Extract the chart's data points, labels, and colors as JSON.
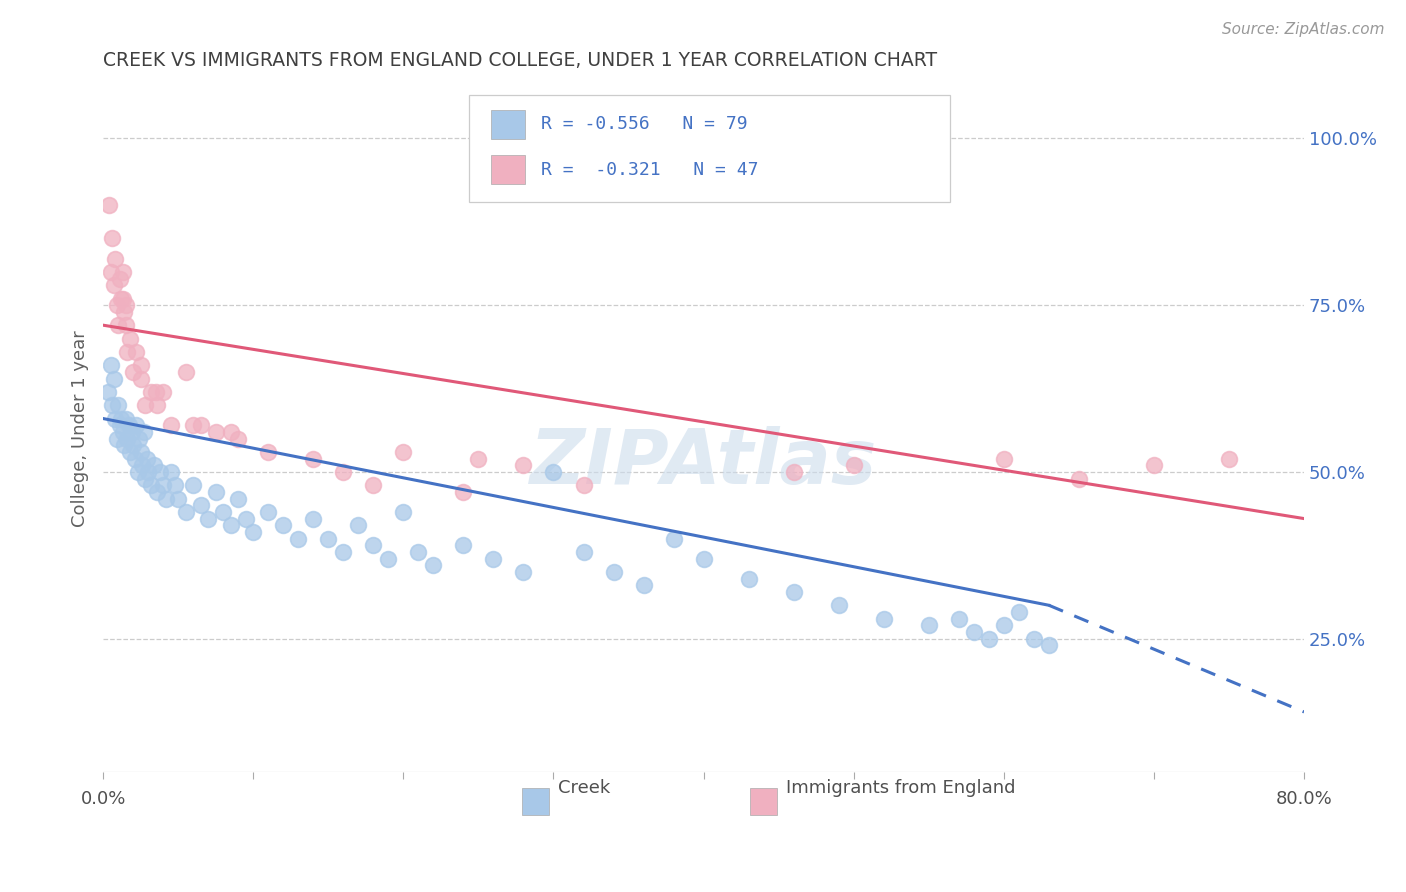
{
  "title": "CREEK VS IMMIGRANTS FROM ENGLAND COLLEGE, UNDER 1 YEAR CORRELATION CHART",
  "source": "Source: ZipAtlas.com",
  "ylabel": "College, Under 1 year",
  "ylabel_ticks_right": [
    "25.0%",
    "50.0%",
    "75.0%",
    "100.0%"
  ],
  "ylabel_ticks_right_vals": [
    0.25,
    0.5,
    0.75,
    1.0
  ],
  "xmin": 0.0,
  "xmax": 0.8,
  "ymin": 0.05,
  "ymax": 1.08,
  "legend_label1": "Creek",
  "legend_label2": "Immigrants from England",
  "R1": -0.556,
  "N1": 79,
  "R2": -0.321,
  "N2": 47,
  "color_creek": "#a8c8e8",
  "color_england": "#f0b0c0",
  "color_creek_line": "#4472c4",
  "color_england_line": "#e05878",
  "title_color": "#404040",
  "axis_label_color": "#606060",
  "right_tick_color": "#4472c4",
  "watermark_color": "#ccdcec",
  "creek_x": [
    0.003,
    0.005,
    0.006,
    0.007,
    0.008,
    0.009,
    0.01,
    0.011,
    0.012,
    0.013,
    0.014,
    0.015,
    0.016,
    0.017,
    0.018,
    0.019,
    0.02,
    0.021,
    0.022,
    0.023,
    0.024,
    0.025,
    0.026,
    0.027,
    0.028,
    0.029,
    0.03,
    0.032,
    0.034,
    0.036,
    0.038,
    0.04,
    0.042,
    0.045,
    0.048,
    0.05,
    0.055,
    0.06,
    0.065,
    0.07,
    0.075,
    0.08,
    0.085,
    0.09,
    0.095,
    0.1,
    0.11,
    0.12,
    0.13,
    0.14,
    0.15,
    0.16,
    0.17,
    0.18,
    0.19,
    0.2,
    0.21,
    0.22,
    0.24,
    0.26,
    0.28,
    0.3,
    0.32,
    0.34,
    0.36,
    0.38,
    0.4,
    0.43,
    0.46,
    0.49,
    0.52,
    0.55,
    0.57,
    0.58,
    0.59,
    0.6,
    0.61,
    0.62,
    0.63
  ],
  "creek_y": [
    0.62,
    0.66,
    0.6,
    0.64,
    0.58,
    0.55,
    0.6,
    0.57,
    0.58,
    0.56,
    0.54,
    0.58,
    0.55,
    0.57,
    0.53,
    0.56,
    0.54,
    0.52,
    0.57,
    0.5,
    0.55,
    0.53,
    0.51,
    0.56,
    0.49,
    0.52,
    0.5,
    0.48,
    0.51,
    0.47,
    0.5,
    0.48,
    0.46,
    0.5,
    0.48,
    0.46,
    0.44,
    0.48,
    0.45,
    0.43,
    0.47,
    0.44,
    0.42,
    0.46,
    0.43,
    0.41,
    0.44,
    0.42,
    0.4,
    0.43,
    0.4,
    0.38,
    0.42,
    0.39,
    0.37,
    0.44,
    0.38,
    0.36,
    0.39,
    0.37,
    0.35,
    0.5,
    0.38,
    0.35,
    0.33,
    0.4,
    0.37,
    0.34,
    0.32,
    0.3,
    0.28,
    0.27,
    0.28,
    0.26,
    0.25,
    0.27,
    0.29,
    0.25,
    0.24
  ],
  "england_x": [
    0.004,
    0.005,
    0.006,
    0.007,
    0.008,
    0.009,
    0.01,
    0.011,
    0.012,
    0.013,
    0.014,
    0.015,
    0.016,
    0.018,
    0.02,
    0.022,
    0.025,
    0.028,
    0.032,
    0.036,
    0.04,
    0.045,
    0.055,
    0.065,
    0.075,
    0.09,
    0.11,
    0.14,
    0.16,
    0.2,
    0.24,
    0.28,
    0.32,
    0.25,
    0.46,
    0.5,
    0.6,
    0.65,
    0.7,
    0.75,
    0.013,
    0.025,
    0.18,
    0.015,
    0.035,
    0.06,
    0.085
  ],
  "england_y": [
    0.9,
    0.8,
    0.85,
    0.78,
    0.82,
    0.75,
    0.72,
    0.79,
    0.76,
    0.8,
    0.74,
    0.72,
    0.68,
    0.7,
    0.65,
    0.68,
    0.64,
    0.6,
    0.62,
    0.6,
    0.62,
    0.57,
    0.65,
    0.57,
    0.56,
    0.55,
    0.53,
    0.52,
    0.5,
    0.53,
    0.47,
    0.51,
    0.48,
    0.52,
    0.5,
    0.51,
    0.52,
    0.49,
    0.51,
    0.52,
    0.76,
    0.66,
    0.48,
    0.75,
    0.62,
    0.57,
    0.56
  ],
  "creek_line_x0": 0.0,
  "creek_line_x_solid_end": 0.63,
  "creek_line_x1": 0.8,
  "creek_line_y0": 0.58,
  "creek_line_y_solid_end": 0.3,
  "creek_line_y1": 0.14,
  "england_line_x0": 0.0,
  "england_line_x1": 0.8,
  "england_line_y0": 0.72,
  "england_line_y1": 0.43
}
